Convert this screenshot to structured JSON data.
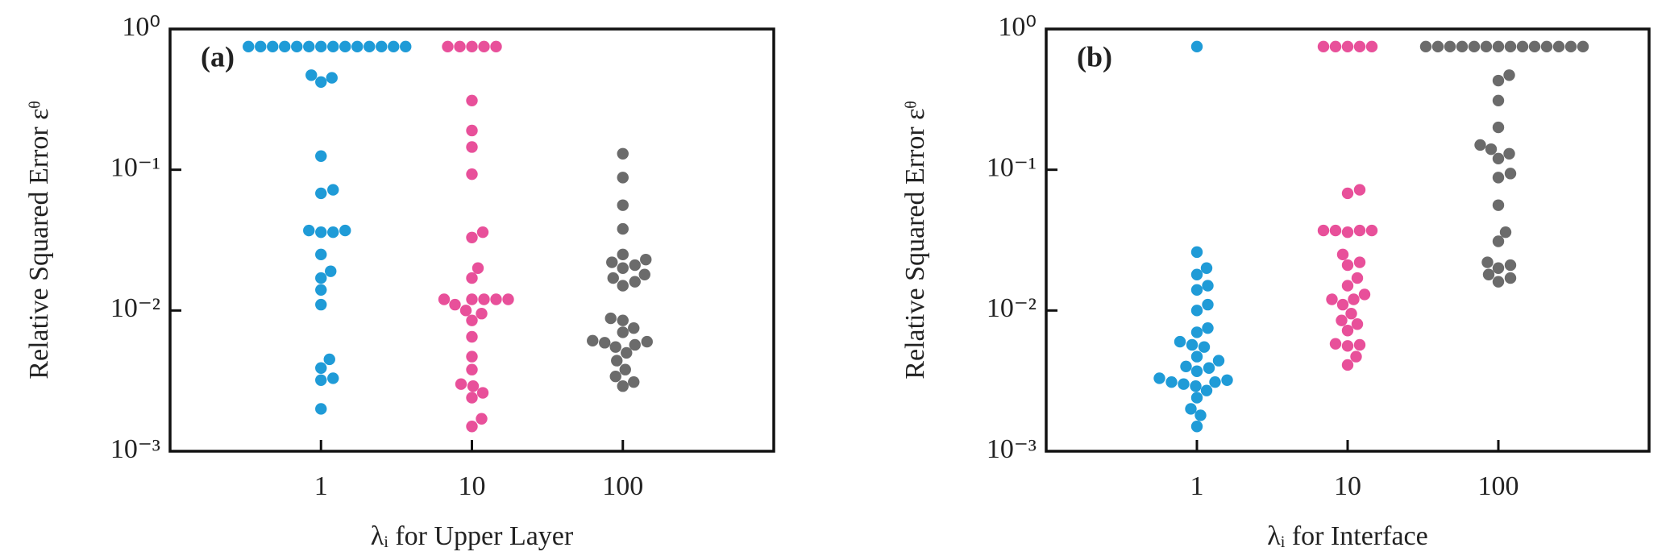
{
  "chart_data": [
    {
      "type": "swarm",
      "label": "(a)",
      "ylabel": "Relative Squared Error εᶿ",
      "xlabel": "λᵢ for Upper Layer",
      "categories": [
        "1",
        "10",
        "100"
      ],
      "colors": [
        "#1f9bd7",
        "#e8509a",
        "#6b6b6b"
      ],
      "values": [
        [
          0.75,
          0.75,
          0.75,
          0.75,
          0.75,
          0.75,
          0.75,
          0.75,
          0.75,
          0.75,
          0.75,
          0.75,
          0.75,
          0.75,
          0.47,
          0.45,
          0.42,
          0.125,
          0.072,
          0.068,
          0.037,
          0.036,
          0.037,
          0.036,
          0.025,
          0.019,
          0.017,
          0.014,
          0.011,
          0.0045,
          0.0039,
          0.0033,
          0.0032,
          0.002
        ],
        [
          0.75,
          0.75,
          0.75,
          0.75,
          0.75,
          0.31,
          0.19,
          0.145,
          0.093,
          0.036,
          0.033,
          0.02,
          0.017,
          0.012,
          0.012,
          0.012,
          0.012,
          0.012,
          0.011,
          0.01,
          0.0095,
          0.0085,
          0.0065,
          0.0047,
          0.0038,
          0.003,
          0.0029,
          0.0026,
          0.0024,
          0.0017,
          0.0015
        ],
        [
          0.13,
          0.088,
          0.056,
          0.038,
          0.025,
          0.023,
          0.022,
          0.021,
          0.02,
          0.018,
          0.017,
          0.016,
          0.015,
          0.0088,
          0.0085,
          0.0075,
          0.007,
          0.0061,
          0.006,
          0.0059,
          0.0057,
          0.0055,
          0.005,
          0.0044,
          0.0038,
          0.0034,
          0.0031,
          0.0029
        ]
      ],
      "yscale": "log",
      "ylim": [
        0.001,
        1
      ],
      "yticks": [
        {
          "value": 0.001,
          "label": "10⁻³"
        },
        {
          "value": 0.01,
          "label": "10⁻²"
        },
        {
          "value": 0.1,
          "label": "10⁻¹"
        },
        {
          "value": 1,
          "label": "10⁰"
        }
      ]
    },
    {
      "type": "swarm",
      "label": "(b)",
      "ylabel": "Relative Squared Error εᶿ",
      "xlabel": "λᵢ for Interface",
      "categories": [
        "1",
        "10",
        "100"
      ],
      "colors": [
        "#1f9bd7",
        "#e8509a",
        "#6b6b6b"
      ],
      "values": [
        [
          0.75,
          0.026,
          0.02,
          0.018,
          0.015,
          0.014,
          0.011,
          0.01,
          0.0075,
          0.007,
          0.006,
          0.0057,
          0.0055,
          0.0047,
          0.0044,
          0.004,
          0.0039,
          0.0037,
          0.0033,
          0.0032,
          0.0031,
          0.0031,
          0.003,
          0.0029,
          0.0027,
          0.0024,
          0.002,
          0.0018,
          0.0015
        ],
        [
          0.75,
          0.75,
          0.75,
          0.75,
          0.75,
          0.072,
          0.068,
          0.037,
          0.037,
          0.037,
          0.037,
          0.036,
          0.025,
          0.022,
          0.021,
          0.017,
          0.015,
          0.013,
          0.012,
          0.012,
          0.011,
          0.0095,
          0.0085,
          0.008,
          0.0072,
          0.0058,
          0.0057,
          0.0056,
          0.0047,
          0.0041
        ],
        [
          0.75,
          0.75,
          0.75,
          0.75,
          0.75,
          0.75,
          0.75,
          0.75,
          0.75,
          0.75,
          0.75,
          0.75,
          0.75,
          0.75,
          0.47,
          0.43,
          0.31,
          0.2,
          0.15,
          0.14,
          0.13,
          0.12,
          0.094,
          0.088,
          0.056,
          0.036,
          0.031,
          0.022,
          0.021,
          0.02,
          0.018,
          0.017,
          0.016
        ]
      ],
      "yscale": "log",
      "ylim": [
        0.001,
        1
      ],
      "yticks": [
        {
          "value": 0.001,
          "label": "10⁻³"
        },
        {
          "value": 0.01,
          "label": "10⁻²"
        },
        {
          "value": 0.1,
          "label": "10⁻¹"
        },
        {
          "value": 1,
          "label": "10⁰"
        }
      ]
    }
  ]
}
